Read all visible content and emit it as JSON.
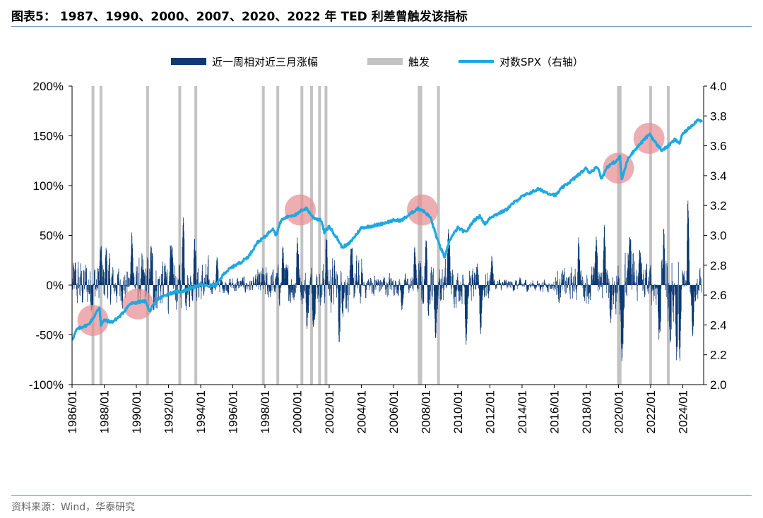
{
  "title": "图表5：  1987、1990、2000、2007、2020、2022 年 TED 利差曾触发该指标",
  "source": "资料来源：Wind，华泰研究",
  "colors": {
    "bars": "#0c3a73",
    "trigger": "#c3c3c3",
    "spx": "#1ea8e3",
    "highlight": "#e88f93"
  },
  "chart_data": {
    "type": "bar+line",
    "legend_position": "top-center",
    "legend": [
      "近一周相对近三月涨幅",
      "触发",
      "对数SPX（右轴）"
    ],
    "x_ticks": [
      "1986/01",
      "1988/01",
      "1990/01",
      "1992/01",
      "1994/01",
      "1996/01",
      "1998/01",
      "2000/01",
      "2002/01",
      "2004/01",
      "2006/01",
      "2008/01",
      "2010/01",
      "2012/01",
      "2014/01",
      "2016/01",
      "2018/01",
      "2020/01",
      "2022/01",
      "2024/01"
    ],
    "x_range": [
      1986.0,
      2025.3
    ],
    "y_left": {
      "range": [
        -100,
        200
      ],
      "ticks": [
        "200%",
        "150%",
        "100%",
        "50%",
        "0%",
        "-50%",
        "-100%"
      ]
    },
    "y_right": {
      "range": [
        2.0,
        4.0
      ],
      "ticks": [
        "4.0",
        "3.8",
        "3.6",
        "3.4",
        "3.2",
        "3.0",
        "2.8",
        "2.6",
        "2.4",
        "2.2",
        "2.0"
      ]
    },
    "triggers": [
      1987.3,
      1987.8,
      1990.7,
      1992.7,
      1993.7,
      1997.9,
      1998.8,
      2000.3,
      2000.9,
      2001.4,
      2001.8,
      2007.6,
      2007.7,
      2008.8,
      2020.0,
      2020.1,
      2022.0,
      2023.1
    ],
    "highlights": [
      {
        "year": 1987.3,
        "spx": 2.43
      },
      {
        "year": 1990.1,
        "spx": 2.54
      },
      {
        "year": 2000.2,
        "spx": 3.17
      },
      {
        "year": 2007.8,
        "spx": 3.17
      },
      {
        "year": 2020.0,
        "spx": 3.45
      },
      {
        "year": 2021.9,
        "spx": 3.65
      }
    ],
    "spx_series": {
      "name": "对数SPX（右轴）",
      "points": [
        [
          1986.0,
          2.3
        ],
        [
          1986.3,
          2.37
        ],
        [
          1986.7,
          2.39
        ],
        [
          1987.0,
          2.4
        ],
        [
          1987.4,
          2.46
        ],
        [
          1987.7,
          2.52
        ],
        [
          1987.8,
          2.4
        ],
        [
          1988.0,
          2.43
        ],
        [
          1988.5,
          2.42
        ],
        [
          1989.0,
          2.46
        ],
        [
          1989.6,
          2.54
        ],
        [
          1990.0,
          2.55
        ],
        [
          1990.6,
          2.56
        ],
        [
          1990.8,
          2.49
        ],
        [
          1991.0,
          2.52
        ],
        [
          1991.3,
          2.57
        ],
        [
          1992.0,
          2.61
        ],
        [
          1993.0,
          2.63
        ],
        [
          1994.0,
          2.67
        ],
        [
          1994.5,
          2.66
        ],
        [
          1995.0,
          2.67
        ],
        [
          1995.5,
          2.75
        ],
        [
          1996.0,
          2.79
        ],
        [
          1996.5,
          2.82
        ],
        [
          1997.0,
          2.86
        ],
        [
          1997.5,
          2.95
        ],
        [
          1998.0,
          2.99
        ],
        [
          1998.5,
          3.05
        ],
        [
          1998.7,
          3.0
        ],
        [
          1999.0,
          3.1
        ],
        [
          1999.5,
          3.13
        ],
        [
          2000.0,
          3.14
        ],
        [
          2000.3,
          3.17
        ],
        [
          2000.6,
          3.18
        ],
        [
          2001.0,
          3.12
        ],
        [
          2001.5,
          3.1
        ],
        [
          2001.7,
          3.02
        ],
        [
          2002.0,
          3.06
        ],
        [
          2002.5,
          2.98
        ],
        [
          2002.8,
          2.92
        ],
        [
          2003.2,
          2.94
        ],
        [
          2003.5,
          2.98
        ],
        [
          2004.0,
          3.05
        ],
        [
          2005.0,
          3.07
        ],
        [
          2006.0,
          3.1
        ],
        [
          2006.5,
          3.1
        ],
        [
          2007.0,
          3.14
        ],
        [
          2007.5,
          3.18
        ],
        [
          2007.8,
          3.17
        ],
        [
          2008.3,
          3.12
        ],
        [
          2008.8,
          2.95
        ],
        [
          2009.2,
          2.85
        ],
        [
          2009.5,
          2.97
        ],
        [
          2010.0,
          3.05
        ],
        [
          2010.5,
          3.02
        ],
        [
          2011.0,
          3.1
        ],
        [
          2011.4,
          3.13
        ],
        [
          2011.7,
          3.07
        ],
        [
          2012.0,
          3.12
        ],
        [
          2013.0,
          3.17
        ],
        [
          2013.5,
          3.22
        ],
        [
          2014.0,
          3.26
        ],
        [
          2015.0,
          3.31
        ],
        [
          2015.7,
          3.28
        ],
        [
          2016.1,
          3.27
        ],
        [
          2016.5,
          3.32
        ],
        [
          2017.0,
          3.36
        ],
        [
          2018.0,
          3.45
        ],
        [
          2018.2,
          3.42
        ],
        [
          2018.7,
          3.46
        ],
        [
          2018.95,
          3.38
        ],
        [
          2019.3,
          3.46
        ],
        [
          2019.9,
          3.5
        ],
        [
          2020.1,
          3.53
        ],
        [
          2020.2,
          3.37
        ],
        [
          2020.6,
          3.52
        ],
        [
          2021.0,
          3.57
        ],
        [
          2021.5,
          3.63
        ],
        [
          2021.95,
          3.68
        ],
        [
          2022.3,
          3.62
        ],
        [
          2022.7,
          3.57
        ],
        [
          2023.0,
          3.59
        ],
        [
          2023.5,
          3.64
        ],
        [
          2023.8,
          3.62
        ],
        [
          2024.0,
          3.68
        ],
        [
          2024.5,
          3.73
        ],
        [
          2025.0,
          3.78
        ],
        [
          2025.2,
          3.76
        ]
      ]
    },
    "bar_series": {
      "name": "近一周相对近三月涨幅",
      "regimes": [
        [
          1986.0,
          22
        ],
        [
          1988.5,
          16
        ],
        [
          1990.0,
          23
        ],
        [
          1992.5,
          18
        ],
        [
          1994.5,
          7
        ],
        [
          1997.5,
          15
        ],
        [
          1999.0,
          15
        ],
        [
          2001.5,
          22
        ],
        [
          2004.0,
          10
        ],
        [
          2006.0,
          8
        ],
        [
          2007.5,
          20
        ],
        [
          2009.5,
          14
        ],
        [
          2012.0,
          5
        ],
        [
          2014.0,
          5
        ],
        [
          2016.0,
          13
        ],
        [
          2018.0,
          16
        ],
        [
          2019.8,
          25
        ],
        [
          2021.0,
          17
        ],
        [
          2022.5,
          28
        ],
        [
          2024.0,
          14
        ],
        [
          2025.3,
          14
        ]
      ],
      "spikes": [
        [
          1987.75,
          38
        ],
        [
          1988.1,
          38
        ],
        [
          1989.7,
          55
        ],
        [
          1990.9,
          40
        ],
        [
          1992.1,
          40
        ],
        [
          1992.9,
          70
        ],
        [
          1993.6,
          48
        ],
        [
          1995.0,
          28
        ],
        [
          1999.1,
          40
        ],
        [
          2000.0,
          48
        ],
        [
          2000.6,
          -45
        ],
        [
          2001.0,
          -42
        ],
        [
          2001.8,
          48
        ],
        [
          2002.6,
          -58
        ],
        [
          2003.4,
          38
        ],
        [
          2006.5,
          -25
        ],
        [
          2007.3,
          40
        ],
        [
          2008.0,
          45
        ],
        [
          2008.6,
          -55
        ],
        [
          2009.4,
          58
        ],
        [
          2010.5,
          -60
        ],
        [
          2011.4,
          -50
        ],
        [
          2012.1,
          30
        ],
        [
          2017.5,
          48
        ],
        [
          2018.6,
          50
        ],
        [
          2019.1,
          62
        ],
        [
          2019.5,
          -38
        ],
        [
          2020.2,
          -78
        ],
        [
          2020.7,
          52
        ],
        [
          2021.3,
          38
        ],
        [
          2022.5,
          -55
        ],
        [
          2022.8,
          57
        ],
        [
          2023.2,
          -60
        ],
        [
          2023.6,
          -77
        ],
        [
          2023.8,
          -80
        ],
        [
          2024.3,
          88
        ],
        [
          2024.6,
          -52
        ]
      ]
    }
  }
}
